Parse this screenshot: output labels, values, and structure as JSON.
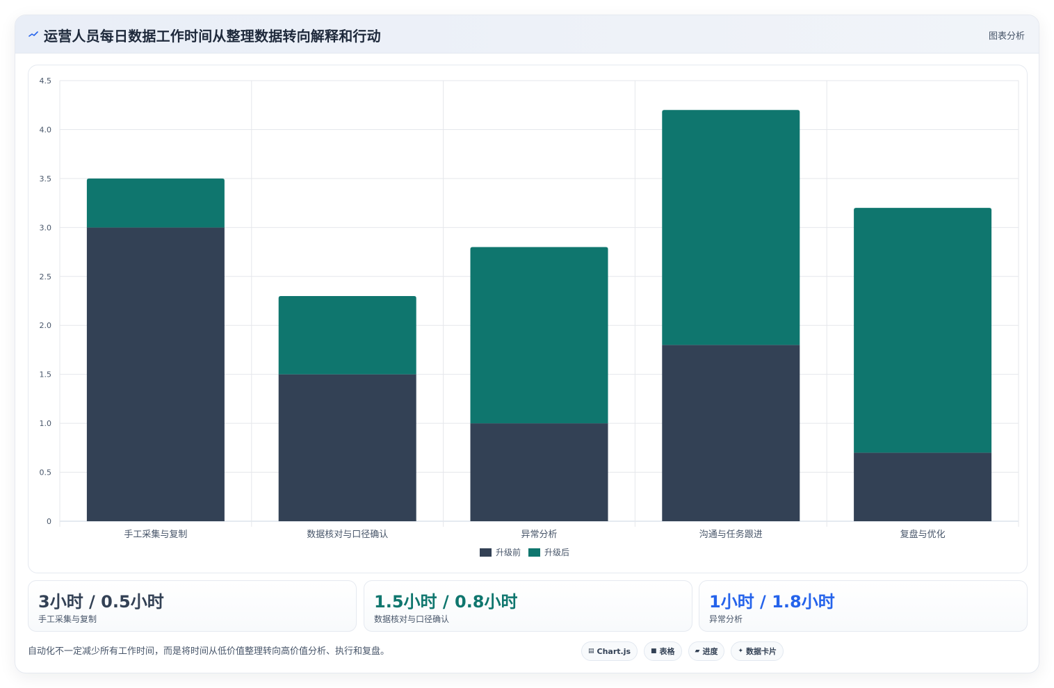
{
  "header": {
    "title": "运营人员每日数据工作时间从整理数据转向解释和行动",
    "link_label": "图表分析"
  },
  "colors": {
    "before": "#334155",
    "after": "#0f766e",
    "accent_blue": "#2563eb",
    "grid": "#e5e7eb",
    "axis_text": "#475569"
  },
  "chart_data": {
    "type": "bar",
    "stacked": true,
    "categories": [
      "手工采集与复制",
      "数据核对与口径确认",
      "异常分析",
      "沟通与任务跟进",
      "复盘与优化"
    ],
    "series": [
      {
        "name": "升级前",
        "values": [
          3.0,
          1.5,
          1.0,
          1.8,
          0.7
        ]
      },
      {
        "name": "升级后",
        "values": [
          0.5,
          0.8,
          1.8,
          2.4,
          2.5
        ]
      }
    ],
    "ylim": [
      0,
      4.5
    ],
    "yticks": [
      "0",
      "0.5",
      "1.0",
      "1.5",
      "2.0",
      "2.5",
      "3.0",
      "3.5",
      "4.0",
      "4.5"
    ],
    "grid": true,
    "legend": "bottom-center"
  },
  "stats": [
    {
      "value": "3小时 / 0.5小时",
      "label": "手工采集与复制",
      "color": "#334155"
    },
    {
      "value": "1.5小时 / 0.8小时",
      "label": "数据核对与口径确认",
      "color": "#0f766e"
    },
    {
      "value": "1小时 / 1.8小时",
      "label": "异常分析",
      "color": "#2563eb"
    }
  ],
  "footnote": "自动化不一定减少所有工作时间，而是将时间从低价值整理转向高价值分析、执行和复盘。",
  "chips": [
    {
      "icon": "chart-icon",
      "glyph": "▤",
      "label": "Chart.js"
    },
    {
      "icon": "table-icon",
      "glyph": "■",
      "label": "表格"
    },
    {
      "icon": "progress-icon",
      "glyph": "▰",
      "label": "进度"
    },
    {
      "icon": "card-icon",
      "glyph": "✦",
      "label": "数据卡片"
    }
  ]
}
